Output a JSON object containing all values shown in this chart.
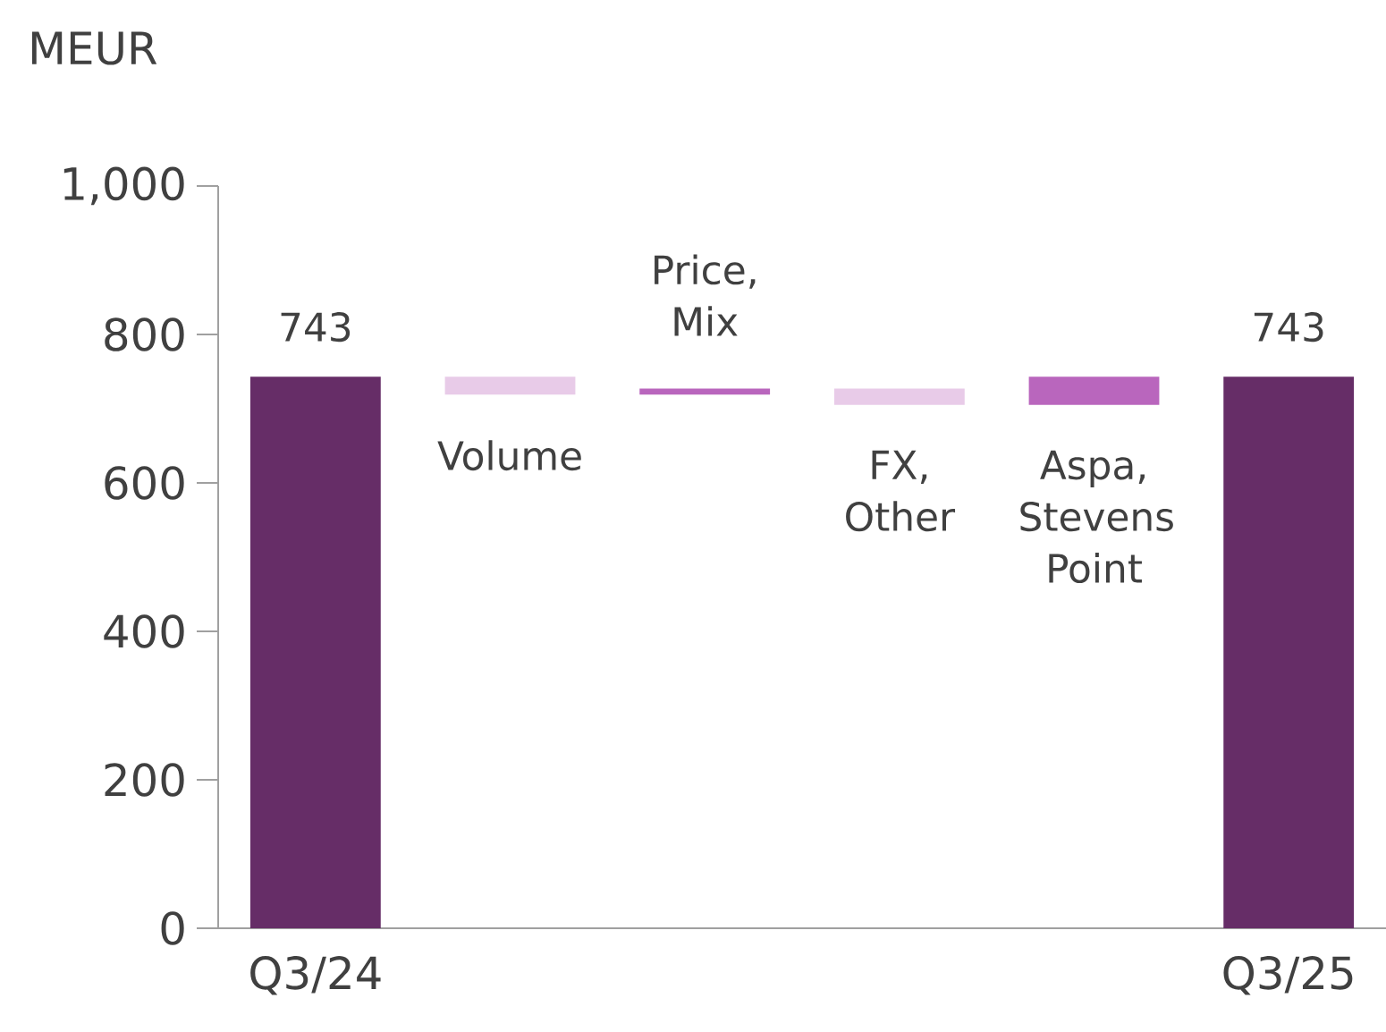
{
  "chart_data": {
    "type": "bar",
    "ylabel": "MEUR",
    "categories": [
      "Q3/24",
      "Volume",
      "Price, Mix",
      "FX, Other",
      "Aspa, Stevens Point",
      "Q3/25"
    ],
    "values": [
      743,
      -24,
      8,
      -22,
      38,
      743
    ],
    "base": [
      0,
      743,
      719,
      727,
      705,
      0
    ],
    "colors": [
      "#662d67",
      "#e8cbe8",
      "#b966bd",
      "#e8cbe8",
      "#b966bd",
      "#662d67"
    ],
    "value_labels": [
      "743",
      null,
      null,
      null,
      null,
      "743"
    ],
    "ylim": [
      0,
      1000
    ],
    "yticks": [
      0,
      200,
      400,
      600,
      800,
      {
        "value": 1000,
        "label": "1,000"
      }
    ],
    "grid": false
  }
}
